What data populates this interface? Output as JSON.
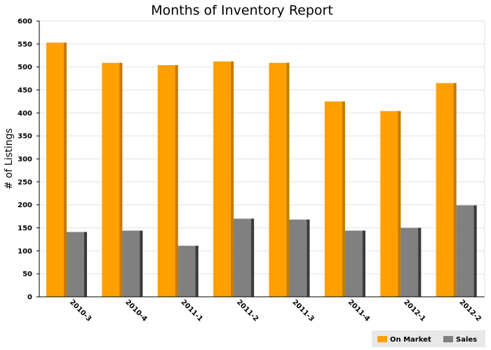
{
  "chart_data": {
    "type": "bar",
    "title": "Months of Inventory Report",
    "xlabel": "",
    "ylabel": "# of Listings",
    "categories": [
      "2010-3",
      "2010-4",
      "2011-1",
      "2011-2",
      "2011-3",
      "2011-4",
      "2012-1",
      "2012-2"
    ],
    "series": [
      {
        "name": "On Market",
        "color": "#ffa000",
        "shade": "#c67a00",
        "values": [
          553,
          509,
          504,
          512,
          509,
          425,
          404,
          465
        ]
      },
      {
        "name": "Sales",
        "color": "#808080",
        "shade": "#3a3a3a",
        "values": [
          141,
          144,
          111,
          170,
          168,
          144,
          150,
          199
        ]
      }
    ],
    "ylim": [
      0,
      600
    ],
    "yticks": [
      0,
      50,
      100,
      150,
      200,
      250,
      300,
      350,
      400,
      450,
      500,
      550,
      600
    ],
    "grid": true,
    "legend_position": "bottom-right"
  }
}
